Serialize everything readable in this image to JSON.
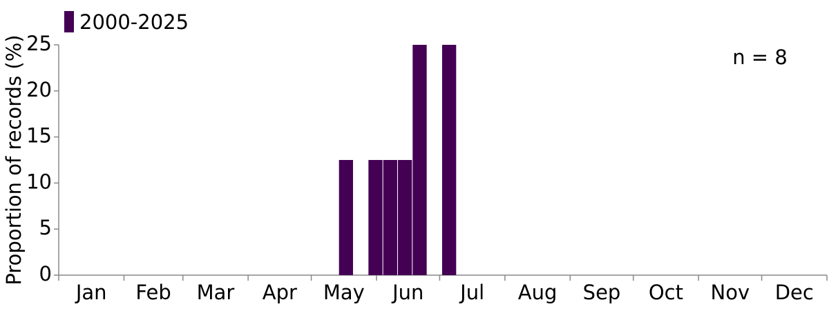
{
  "chart_data": {
    "type": "histogram",
    "bins": [
      0,
      7,
      14,
      21,
      28,
      35,
      42,
      49,
      56,
      63,
      70,
      77,
      84,
      91,
      98,
      105,
      112,
      119,
      126,
      133,
      140,
      147,
      154,
      161,
      168,
      175,
      182,
      189,
      196,
      203,
      210,
      217,
      224,
      231,
      238,
      245,
      252,
      259,
      266,
      273,
      280,
      287,
      294,
      301,
      308,
      315,
      322,
      329,
      336,
      343,
      350,
      357,
      364
    ],
    "series": [
      {
        "name": "2000-2025",
        "color": "#440154",
        "values": [
          0,
          0,
          0,
          0,
          0,
          0,
          0,
          0,
          0,
          0,
          0,
          0,
          0,
          0,
          0,
          0,
          0,
          0,
          0,
          12.5,
          0,
          12.5,
          12.5,
          12.5,
          25,
          0,
          25,
          0,
          0,
          0,
          0,
          0,
          0,
          0,
          0,
          0,
          0,
          0,
          0,
          0,
          0,
          0,
          0,
          0,
          0,
          0,
          0,
          0,
          0,
          0,
          0,
          0
        ]
      }
    ],
    "xlim": [
      0,
      365
    ],
    "xticks": [
      0,
      31,
      59,
      90,
      120,
      151,
      181,
      212,
      243,
      273,
      304,
      334,
      365
    ],
    "categories": [
      "Jan",
      "Feb",
      "Mar",
      "Apr",
      "May",
      "Jun",
      "Jul",
      "Aug",
      "Sep",
      "Oct",
      "Nov",
      "Dec"
    ],
    "ylabel": "Proportion of records (%)",
    "ylim": [
      0,
      25
    ],
    "yticks": [
      0,
      5,
      10,
      15,
      20,
      25
    ],
    "annotation": "n = 8"
  }
}
